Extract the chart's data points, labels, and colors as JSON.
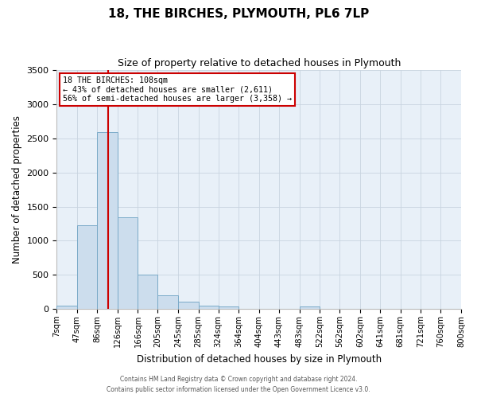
{
  "title": "18, THE BIRCHES, PLYMOUTH, PL6 7LP",
  "subtitle": "Size of property relative to detached houses in Plymouth",
  "xlabel": "Distribution of detached houses by size in Plymouth",
  "ylabel": "Number of detached properties",
  "bar_color": "#ccdded",
  "bar_edge_color": "#7aaac8",
  "background_color": "#ffffff",
  "ax_background_color": "#e8f0f8",
  "grid_color": "#c8d4e0",
  "annotation_box_color": "#cc0000",
  "vline_color": "#cc0000",
  "vline_x": 108,
  "categories": [
    "7sqm",
    "47sqm",
    "86sqm",
    "126sqm",
    "166sqm",
    "205sqm",
    "245sqm",
    "285sqm",
    "324sqm",
    "364sqm",
    "404sqm",
    "443sqm",
    "483sqm",
    "522sqm",
    "562sqm",
    "602sqm",
    "641sqm",
    "681sqm",
    "721sqm",
    "760sqm",
    "800sqm"
  ],
  "bin_edges": [
    7,
    47,
    86,
    126,
    166,
    205,
    245,
    285,
    324,
    364,
    404,
    443,
    483,
    522,
    562,
    602,
    641,
    681,
    721,
    760,
    800
  ],
  "values": [
    50,
    1230,
    2590,
    1340,
    500,
    200,
    110,
    50,
    35,
    0,
    0,
    0,
    35,
    0,
    0,
    0,
    0,
    0,
    0,
    0,
    0
  ],
  "ylim": [
    0,
    3500
  ],
  "yticks": [
    0,
    500,
    1000,
    1500,
    2000,
    2500,
    3000,
    3500
  ],
  "annotation_text": "18 THE BIRCHES: 108sqm\n← 43% of detached houses are smaller (2,611)\n56% of semi-detached houses are larger (3,358) →",
  "footer_line1": "Contains HM Land Registry data © Crown copyright and database right 2024.",
  "footer_line2": "Contains public sector information licensed under the Open Government Licence v3.0."
}
